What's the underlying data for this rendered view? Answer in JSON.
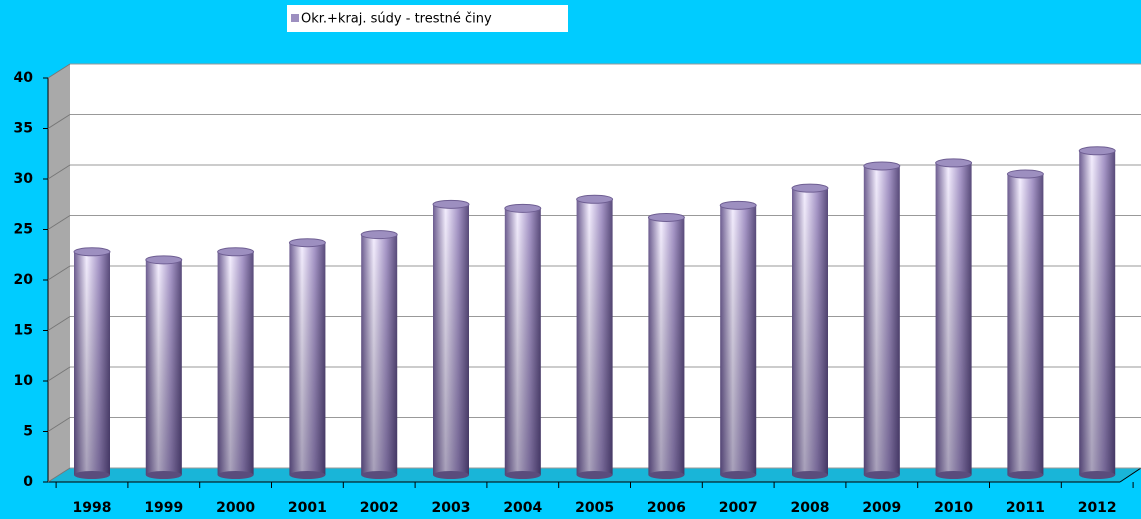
{
  "chart_data": {
    "type": "bar",
    "categories": [
      "1998",
      "1999",
      "2000",
      "2001",
      "2002",
      "2003",
      "2004",
      "2005",
      "2006",
      "2007",
      "2008",
      "2009",
      "2010",
      "2011",
      "2012"
    ],
    "series": [
      {
        "name": "Okr.+kraj. súdy - trestné činy",
        "color": "#9d8fc0",
        "values": [
          22.1,
          21.3,
          22.1,
          23.0,
          23.8,
          26.8,
          26.4,
          27.3,
          25.5,
          26.7,
          28.4,
          30.6,
          30.9,
          29.8,
          32.1
        ]
      }
    ],
    "ylim": [
      0,
      40
    ],
    "yticks": [
      0,
      5,
      10,
      15,
      20,
      25,
      30,
      35,
      40
    ],
    "grid": true,
    "legend": "top"
  }
}
